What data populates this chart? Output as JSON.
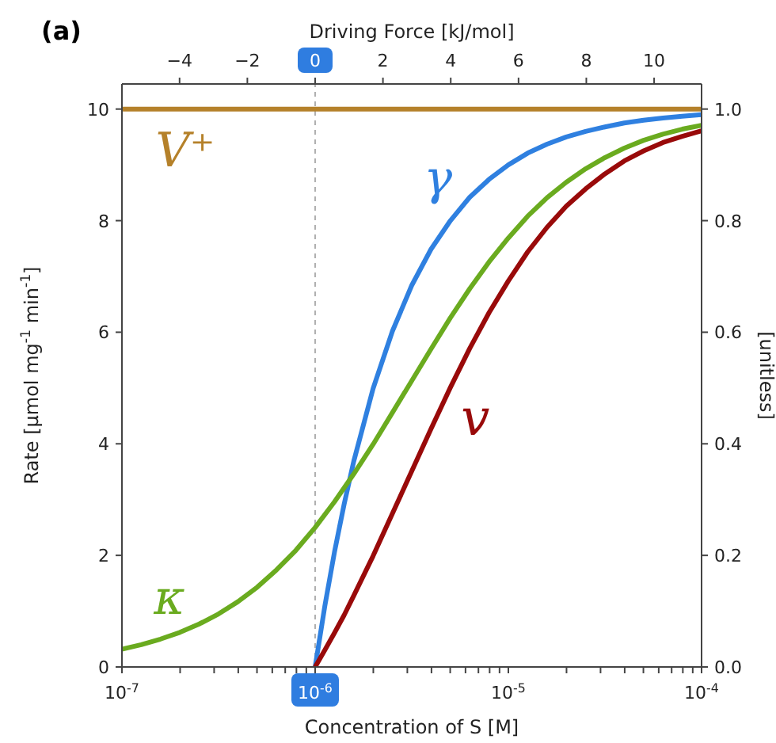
{
  "chart_data": {
    "type": "line",
    "annotations": [
      "(a)"
    ],
    "x2label": "Driving Force [kJ/mol]",
    "xlabel": "Concentration of S [M]",
    "ylabel": "Rate [µmol mg$^{-1}$ min$^{-1}$]",
    "y2label": "[unitless]",
    "log": "x",
    "xlim": [
      1e-07,
      0.0001
    ],
    "xticks": [
      {
        "value": 1e-07,
        "label": "10$^{-7}$"
      },
      {
        "value": 2e-07,
        "label": null
      },
      {
        "value": 3e-07,
        "label": null
      },
      {
        "value": 4e-07,
        "label": null
      },
      {
        "value": 5e-07,
        "label": null
      },
      {
        "value": 6e-07,
        "label": null
      },
      {
        "value": 7e-07,
        "label": null
      },
      {
        "value": 8e-07,
        "label": null
      },
      {
        "value": 9e-07,
        "label": null
      },
      {
        "value": 1e-06,
        "label": "10$^{-6}$"
      },
      {
        "value": 2e-06,
        "label": null
      },
      {
        "value": 3e-06,
        "label": null
      },
      {
        "value": 4e-06,
        "label": null
      },
      {
        "value": 5e-06,
        "label": null
      },
      {
        "value": 6e-06,
        "label": null
      },
      {
        "value": 7e-06,
        "label": null
      },
      {
        "value": 8e-06,
        "label": null
      },
      {
        "value": 9e-06,
        "label": null
      },
      {
        "value": 1e-05,
        "label": "10$^{-5}$"
      },
      {
        "value": 2e-05,
        "label": null
      },
      {
        "value": 3e-05,
        "label": null
      },
      {
        "value": 4e-05,
        "label": null
      },
      {
        "value": 5e-05,
        "label": null
      },
      {
        "value": 6e-05,
        "label": null
      },
      {
        "value": 7e-05,
        "label": null
      },
      {
        "value": 8e-05,
        "label": null
      },
      {
        "value": 9e-05,
        "label": null
      },
      {
        "value": 0.0001,
        "label": "10$^{-4}$"
      }
    ],
    "x2lim": [
      -5.7,
      11.4
    ],
    "x2ticks": [
      {
        "value": -4,
        "label": "−4"
      },
      {
        "value": -2,
        "label": "−2"
      },
      0,
      2,
      4,
      6,
      8,
      10
    ],
    "ylim": [
      0,
      10.45
    ],
    "yticks": [
      0,
      2,
      4,
      6,
      8,
      10
    ],
    "y2lim": [
      0,
      1.045
    ],
    "y2ticks": [
      {
        "value": 0,
        "label": "0.0"
      },
      0.2,
      0.4,
      0.6,
      0.8,
      {
        "value": 1,
        "label": "1.0"
      }
    ],
    "grid": false,
    "legend": false,
    "marker": "none",
    "line_style": "solid",
    "ref_lines": [
      {
        "axis": "x",
        "value": 1e-06,
        "color": "#b0b0b0",
        "line_style": "dashed"
      }
    ],
    "series": [
      {
        "name": "V⁺",
        "color": "#b5812a",
        "x": [
          1e-07,
          0.0001
        ],
        "values": [
          10,
          10
        ]
      },
      {
        "name": "γ",
        "color": "#2f80e0",
        "axis": "y2",
        "x": [
          1e-06,
          1.122e-06,
          1.259e-06,
          1.413e-06,
          1.585e-06,
          1.995e-06,
          2.512e-06,
          3.162e-06,
          3.981e-06,
          5.012e-06,
          6.31e-06,
          7.943e-06,
          1e-05,
          1.259e-05,
          1.585e-05,
          1.995e-05,
          2.512e-05,
          3.162e-05,
          3.981e-05,
          5.012e-05,
          6.31e-05,
          7.943e-05,
          0.0001
        ],
        "values": [
          0,
          0.109,
          0.206,
          0.292,
          0.369,
          0.499,
          0.602,
          0.684,
          0.749,
          0.8,
          0.842,
          0.874,
          0.9,
          0.921,
          0.937,
          0.95,
          0.96,
          0.968,
          0.975,
          0.98,
          0.984,
          0.987,
          0.99
        ]
      },
      {
        "name": "κ",
        "color": "#6aab1f",
        "axis": "y2",
        "x": [
          1e-07,
          1.259e-07,
          1.585e-07,
          1.995e-07,
          2.512e-07,
          3.162e-07,
          3.981e-07,
          5.012e-07,
          6.31e-07,
          7.943e-07,
          1e-06,
          1.259e-06,
          1.585e-06,
          1.995e-06,
          2.512e-06,
          3.162e-06,
          3.981e-06,
          5.012e-06,
          6.31e-06,
          7.943e-06,
          1e-05,
          1.259e-05,
          1.585e-05,
          1.995e-05,
          2.512e-05,
          3.162e-05,
          3.981e-05,
          5.012e-05,
          6.31e-05,
          7.943e-05,
          0.0001
        ],
        "values": [
          0.032,
          0.04,
          0.05,
          0.062,
          0.077,
          0.095,
          0.117,
          0.143,
          0.174,
          0.209,
          0.25,
          0.296,
          0.346,
          0.399,
          0.456,
          0.513,
          0.57,
          0.626,
          0.678,
          0.726,
          0.769,
          0.808,
          0.841,
          0.869,
          0.893,
          0.913,
          0.93,
          0.944,
          0.955,
          0.964,
          0.971
        ]
      },
      {
        "name": "v",
        "color": "#990a0a",
        "x": [
          1e-06,
          1.122e-06,
          1.259e-06,
          1.413e-06,
          1.585e-06,
          1.995e-06,
          2.512e-06,
          3.162e-06,
          3.981e-06,
          5.012e-06,
          6.31e-06,
          7.943e-06,
          1e-05,
          1.259e-05,
          1.585e-05,
          1.995e-05,
          2.512e-05,
          3.162e-05,
          3.981e-05,
          5.012e-05,
          6.31e-05,
          7.943e-05,
          0.0001
        ],
        "values": [
          0,
          0.3,
          0.61,
          0.93,
          1.28,
          1.99,
          2.75,
          3.51,
          4.27,
          5.01,
          5.71,
          6.35,
          6.92,
          7.44,
          7.88,
          8.26,
          8.57,
          8.84,
          9.07,
          9.25,
          9.4,
          9.51,
          9.61
        ]
      }
    ]
  }
}
